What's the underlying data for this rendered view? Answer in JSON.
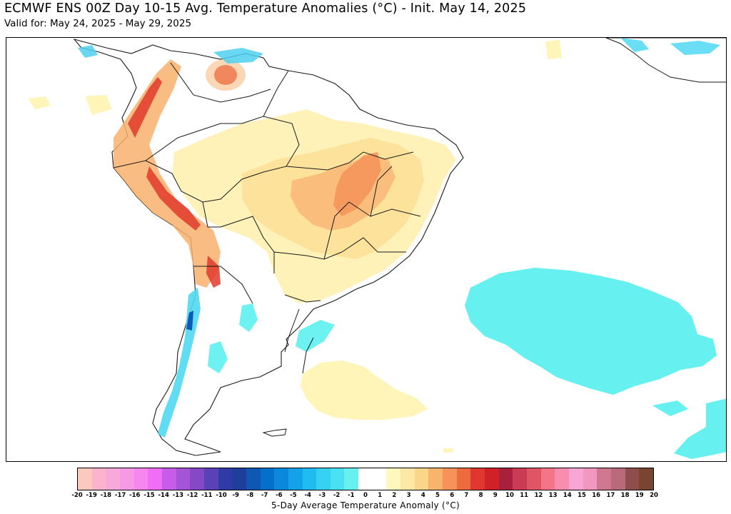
{
  "header": {
    "title": "ECMWF ENS 00Z Day 10-15 Avg. Temperature Anomalies (°C) - Init. May 14, 2025",
    "subtitle": "Valid for: May 24, 2025 - May 29, 2025"
  },
  "map": {
    "region": "South America",
    "projection_note": "Lat/Lon",
    "land_fill_color": "#ffffff",
    "border_color": "#1a1a1a",
    "warm_anomaly_colors": [
      "#fff7bd",
      "#fde9a6",
      "#fbd58a",
      "#f8b36c",
      "#f7935a",
      "#ee6b3e",
      "#e0382f"
    ],
    "cool_anomaly_colors": [
      "#66f0f0",
      "#32c6ec",
      "#1e9ee6"
    ]
  },
  "colorbar": {
    "label": "5-Day Average Temperature Anomaly (°C)",
    "ticks": [
      "-20",
      "-19",
      "-18",
      "-17",
      "-16",
      "-15",
      "-14",
      "-13",
      "-12",
      "-11",
      "-10",
      "-9",
      "-8",
      "-7",
      "-6",
      "-5",
      "-4",
      "-3",
      "-2",
      "-1",
      "0",
      "1",
      "2",
      "3",
      "4",
      "5",
      "6",
      "7",
      "8",
      "9",
      "10",
      "11",
      "12",
      "13",
      "14",
      "15",
      "16",
      "17",
      "18",
      "19",
      "20"
    ],
    "colors": [
      "#fdc9bc",
      "#fcb4cc",
      "#f9a8da",
      "#f79ae6",
      "#f787ef",
      "#f06ef5",
      "#c65de8",
      "#a554d8",
      "#8549c8",
      "#5c40b8",
      "#2f3ca8",
      "#1f3e9a",
      "#0e58b4",
      "#0570cc",
      "#0a88dc",
      "#13a2e8",
      "#20bcf0",
      "#37d2f2",
      "#4ae2f3",
      "#66f0f0",
      "#ffffff",
      "#ffffff",
      "#fff7bd",
      "#fde9a6",
      "#fbd58a",
      "#f8b36c",
      "#f7935a",
      "#ee6b3e",
      "#e0382f",
      "#d02028",
      "#a8203c",
      "#cc3b55",
      "#e05565",
      "#f47587",
      "#f88db0",
      "#f9a6d6",
      "#f098c0",
      "#d0788f",
      "#b86a7a",
      "#8e4e4e",
      "#7a4530"
    ]
  }
}
